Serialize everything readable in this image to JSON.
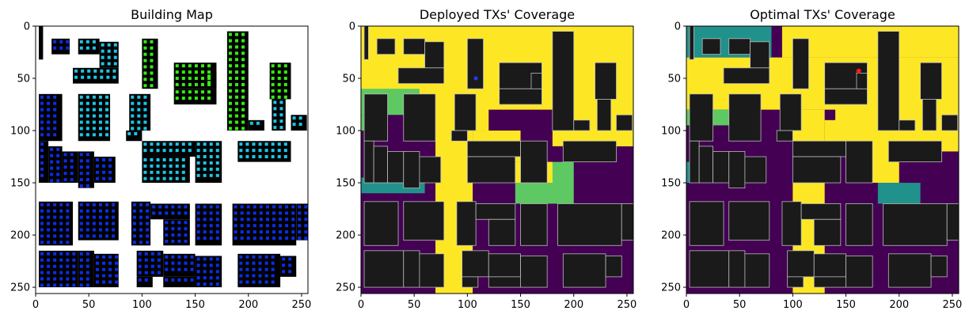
{
  "chart_data": [
    {
      "type": "heatmap",
      "title": "Building Map",
      "xlim": [
        0,
        256
      ],
      "ylim": [
        256,
        0
      ],
      "xticks": [
        0,
        50,
        100,
        150,
        200,
        250
      ],
      "yticks": [
        0,
        50,
        100,
        150,
        200,
        250
      ],
      "description_colors": {
        "background": "#ffffff",
        "building": "#000000",
        "rx_far": "#0a2ee6",
        "rx_mid": "#1ac6e6",
        "rx_near": "#33ee11"
      }
    },
    {
      "type": "heatmap",
      "title": "Deployed TXs' Coverage",
      "xlim": [
        0,
        256
      ],
      "ylim": [
        256,
        0
      ],
      "xticks": [
        0,
        50,
        100,
        150,
        200,
        250
      ],
      "yticks": [
        0,
        50,
        100,
        150,
        200,
        250
      ],
      "tx_marker": {
        "x": 108,
        "y": 50,
        "color": "#1f3cff"
      },
      "description_colors": {
        "low": "#440154",
        "mid_low": "#21918c",
        "mid_high": "#5ec962",
        "high": "#fde725",
        "building": "#1a1a1a"
      }
    },
    {
      "type": "heatmap",
      "title": "Optimal TXs' Coverage",
      "xlim": [
        0,
        256
      ],
      "ylim": [
        256,
        0
      ],
      "xticks": [
        0,
        50,
        100,
        150,
        200,
        250
      ],
      "yticks": [
        0,
        50,
        100,
        150,
        200,
        250
      ],
      "tx_marker": {
        "x": 162,
        "y": 43,
        "color": "#ff1a1a"
      },
      "description_colors": {
        "low": "#440154",
        "mid_low": "#21918c",
        "mid_high": "#5ec962",
        "high": "#fde725",
        "building": "#1a1a1a"
      }
    }
  ]
}
